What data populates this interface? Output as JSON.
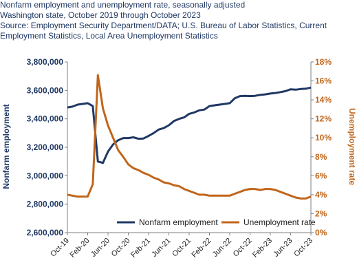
{
  "header": {
    "title": "Nonfarm employment and unemployment rate, seasonally adjusted",
    "subtitle": "Washington state, October 2019 through October 2023",
    "source_line1": "Source: Employment Security Department/DATA; U.S. Bureau of Labor Statistics, Current",
    "source_line2": "Employment Statistics, Local Area Unemployment Statistics"
  },
  "chart_data": {
    "type": "line",
    "title": "Nonfarm employment and unemployment rate, seasonally adjusted",
    "ylabel": "Nonfarm employment",
    "y2label": "Unemployment rate",
    "ylim": [
      2600000,
      3800000
    ],
    "y2lim": [
      0,
      18
    ],
    "yticks": [
      "2,600,000",
      "2,800,000",
      "3,000,000",
      "3,200,000",
      "3,400,000",
      "3,600,000",
      "3,800,000"
    ],
    "y2ticks": [
      "0%",
      "2%",
      "4%",
      "6%",
      "8%",
      "10%",
      "12%",
      "14%",
      "16%",
      "18%"
    ],
    "xticks": [
      "Oct-19",
      "Feb-20",
      "Jun-20",
      "Oct-20",
      "Feb-21",
      "Jun-21",
      "Oct-21",
      "Feb-22",
      "Jun-22",
      "Oct-22",
      "Feb-23",
      "Jun-23",
      "Oct-23"
    ],
    "legend_position": "bottom",
    "grid": false,
    "series": [
      {
        "name": "Nonfarm employment",
        "axis": "left",
        "color": "#1f3864",
        "values": [
          3480000,
          3486000,
          3500000,
          3505000,
          3510000,
          3490000,
          3100000,
          3090000,
          3170000,
          3220000,
          3250000,
          3265000,
          3265000,
          3270000,
          3260000,
          3262000,
          3280000,
          3300000,
          3325000,
          3335000,
          3355000,
          3385000,
          3400000,
          3410000,
          3435000,
          3445000,
          3460000,
          3465000,
          3490000,
          3495000,
          3500000,
          3505000,
          3510000,
          3545000,
          3560000,
          3562000,
          3560000,
          3562000,
          3568000,
          3572000,
          3578000,
          3582000,
          3588000,
          3595000,
          3608000,
          3605000,
          3610000,
          3612000,
          3620000
        ]
      },
      {
        "name": "Unemployment rate",
        "axis": "right",
        "color": "#c0651a",
        "values": [
          4.0,
          3.9,
          3.8,
          3.8,
          3.8,
          5.1,
          16.6,
          13.1,
          11.3,
          10.0,
          8.7,
          8.0,
          7.2,
          6.8,
          6.6,
          6.3,
          6.1,
          5.8,
          5.6,
          5.3,
          5.2,
          5.0,
          4.9,
          4.6,
          4.4,
          4.2,
          4.0,
          4.0,
          3.9,
          3.9,
          3.9,
          3.9,
          3.9,
          4.1,
          4.3,
          4.5,
          4.6,
          4.6,
          4.5,
          4.6,
          4.6,
          4.5,
          4.3,
          4.1,
          3.9,
          3.7,
          3.6,
          3.6,
          3.8
        ]
      }
    ]
  }
}
